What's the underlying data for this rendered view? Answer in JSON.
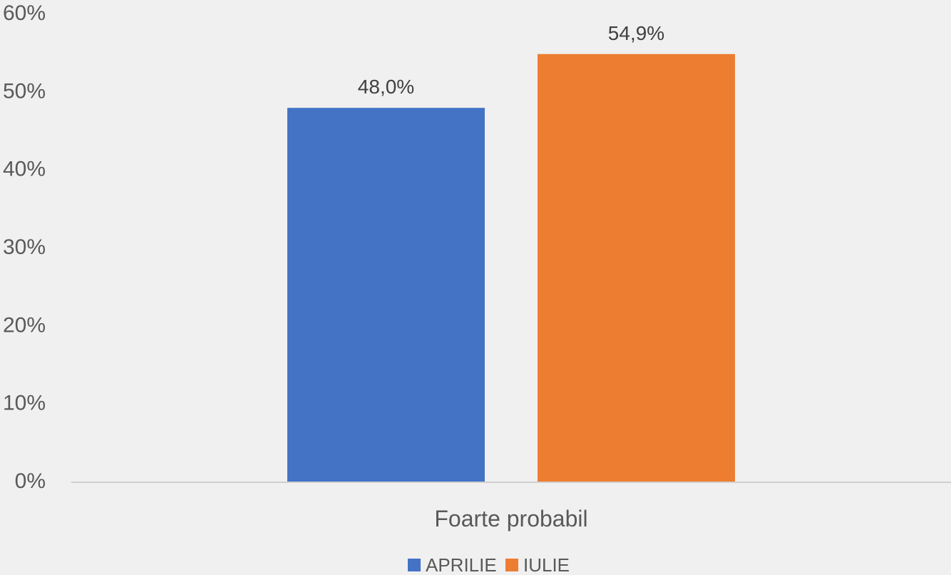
{
  "chart_data": {
    "type": "bar",
    "categories": [
      "Foarte probabil"
    ],
    "series": [
      {
        "name": "APRILIE",
        "values": [
          48.0
        ],
        "color": "#4472c4",
        "label": "48,0%"
      },
      {
        "name": "IULIE",
        "values": [
          54.9
        ],
        "color": "#ed7d31",
        "label": "54,9%"
      }
    ],
    "ylim": [
      0,
      60
    ],
    "yticks": [
      0,
      10,
      20,
      30,
      40,
      50,
      60
    ],
    "ytick_labels": [
      "0%",
      "10%",
      "20%",
      "30%",
      "40%",
      "50%",
      "60%"
    ],
    "grid": false,
    "legend": "bottom",
    "xlabel": "",
    "ylabel": "",
    "title": ""
  }
}
